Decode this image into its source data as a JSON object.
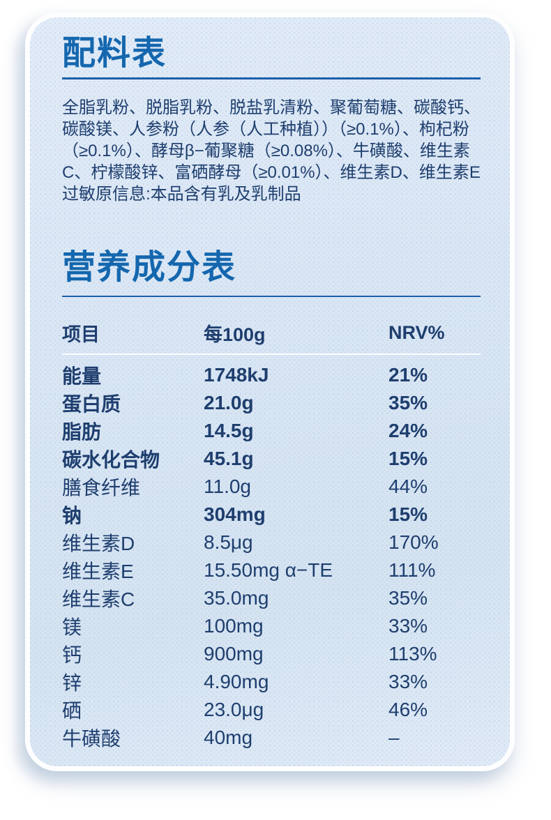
{
  "theme": {
    "accent": "#1467ae",
    "ink": "#1e3e6e",
    "rule_blue": "#1c5fa8",
    "card_bg_light": "#e2ecf8",
    "card_bg_dark": "#d5e3f1",
    "page_bg": "#ffffff"
  },
  "ingredients": {
    "title": "配料表",
    "body": "全脂乳粉、脱脂乳粉、脱盐乳清粉、聚葡萄糖、碳酸钙、碳酸镁、人参粉（人参（人工种植））（≥0.1%）、枸杞粉（≥0.1%）、酵母β−葡聚糖（≥0.08%）、牛磺酸、维生素C、柠檬酸锌、富硒酵母（≥0.01%）、维生素D、维生素E",
    "allergen": "过敏原信息:本品含有乳及乳制品"
  },
  "nutrition": {
    "title": "营养成分表",
    "columns": [
      "项目",
      "每100g",
      "NRV%"
    ],
    "rows": [
      {
        "name": "能量",
        "amount": "1748kJ",
        "nrv": "21%",
        "bold": true
      },
      {
        "name": "蛋白质",
        "amount": "21.0g",
        "nrv": "35%",
        "bold": true
      },
      {
        "name": "脂肪",
        "amount": "14.5g",
        "nrv": "24%",
        "bold": true
      },
      {
        "name": "碳水化合物",
        "amount": "45.1g",
        "nrv": "15%",
        "bold": true
      },
      {
        "name": "膳食纤维",
        "amount": "11.0g",
        "nrv": "44%",
        "bold": false
      },
      {
        "name": "钠",
        "amount": "304mg",
        "nrv": "15%",
        "bold": true
      },
      {
        "name": "维生素D",
        "amount": "8.5μg",
        "nrv": "170%",
        "bold": false
      },
      {
        "name": "维生素E",
        "amount": "15.50mg α−TE",
        "nrv": "111%",
        "bold": false
      },
      {
        "name": "维生素C",
        "amount": "35.0mg",
        "nrv": "35%",
        "bold": false
      },
      {
        "name": "镁",
        "amount": "100mg",
        "nrv": "33%",
        "bold": false
      },
      {
        "name": "钙",
        "amount": "900mg",
        "nrv": "113%",
        "bold": false
      },
      {
        "name": "锌",
        "amount": "4.90mg",
        "nrv": "33%",
        "bold": false
      },
      {
        "name": "硒",
        "amount": "23.0μg",
        "nrv": "46%",
        "bold": false
      },
      {
        "name": "牛磺酸",
        "amount": "40mg",
        "nrv": "–",
        "bold": false
      }
    ]
  }
}
